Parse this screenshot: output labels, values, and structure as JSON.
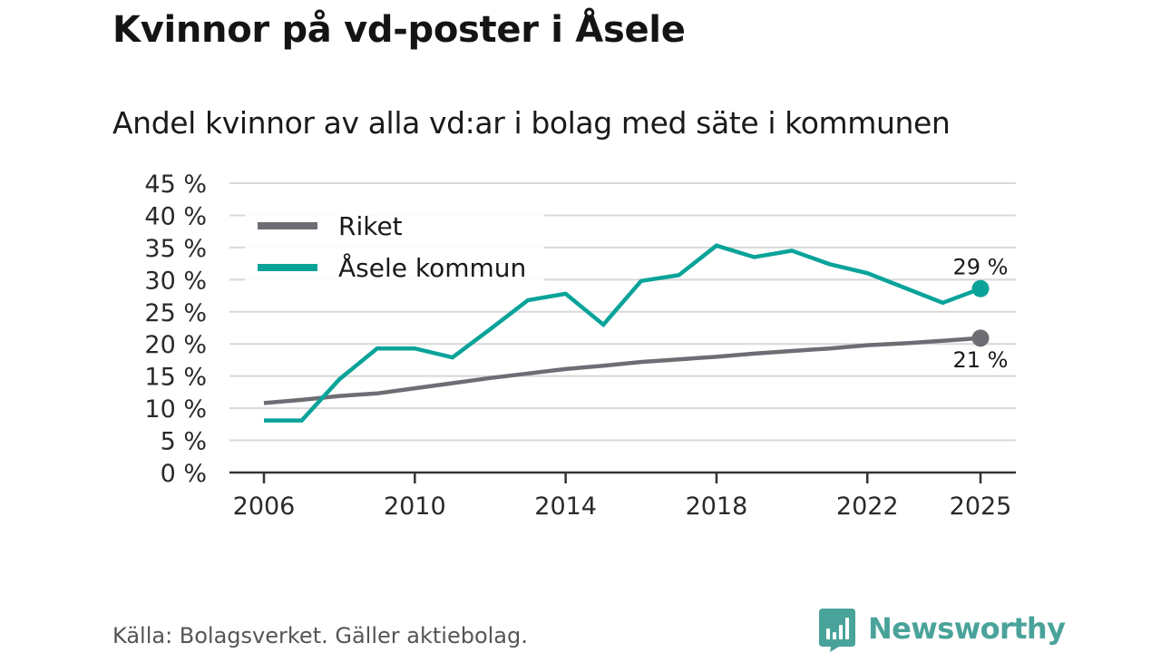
{
  "title": "Kvinnor på vd-poster i Åsele",
  "subtitle": "Andel kvinnor av alla vd:ar i bolag med säte i kommunen",
  "source": "Källa: Bolagsverket. Gäller aktiebolag.",
  "brand": "Newsworthy",
  "colors": {
    "riket": "#6e6d74",
    "asele": "#0aa39a",
    "brand": "#4aa39a",
    "grid": "#d8d8d8",
    "axis": "#333333"
  },
  "chart_data": {
    "type": "line",
    "title": "Kvinnor på vd-poster i Åsele",
    "subtitle": "Andel kvinnor av alla vd:ar i bolag med säte i kommunen",
    "xlabel": "",
    "ylabel": "",
    "x": [
      2006,
      2007,
      2008,
      2009,
      2010,
      2011,
      2012,
      2013,
      2014,
      2015,
      2016,
      2017,
      2018,
      2019,
      2020,
      2021,
      2022,
      2023,
      2024,
      2025
    ],
    "xlim": [
      2006,
      2025
    ],
    "ylim": [
      0,
      45
    ],
    "x_ticks": [
      2006,
      2010,
      2014,
      2018,
      2022,
      2025
    ],
    "y_ticks": [
      0,
      5,
      10,
      15,
      20,
      25,
      30,
      35,
      40,
      45
    ],
    "y_tick_labels": [
      "0 %",
      "5 %",
      "10 %",
      "15 %",
      "20 %",
      "25 %",
      "30 %",
      "35 %",
      "40 %",
      "45 %"
    ],
    "grid": true,
    "legend_position": "top-left",
    "series": [
      {
        "name": "Riket",
        "values": [
          10.8,
          11.3,
          11.9,
          12.3,
          13.1,
          13.9,
          14.7,
          15.4,
          16.1,
          16.6,
          17.2,
          17.6,
          18.0,
          18.5,
          18.9,
          19.3,
          19.8,
          20.1,
          20.5,
          20.9
        ],
        "end_label": "21 %"
      },
      {
        "name": "Åsele kommun",
        "values": [
          8.1,
          8.1,
          14.5,
          19.3,
          19.3,
          17.9,
          22.3,
          26.8,
          27.8,
          23.0,
          29.8,
          30.7,
          35.3,
          33.5,
          34.5,
          32.4,
          31.0,
          28.7,
          26.4,
          28.6
        ],
        "end_label": "29 %"
      }
    ]
  }
}
